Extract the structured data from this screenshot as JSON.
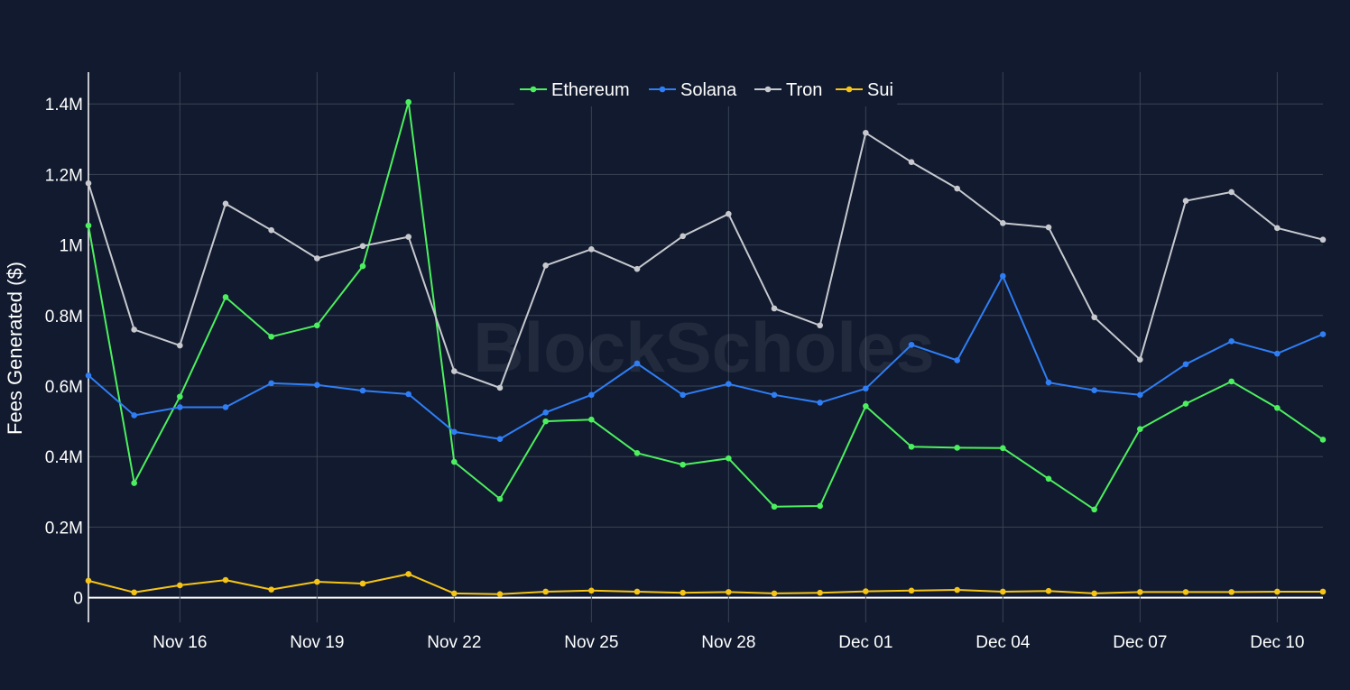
{
  "chart_data": {
    "type": "line",
    "title": "",
    "xlabel": "",
    "ylabel": "Fees Generated ($)",
    "watermark": "BlockScholes",
    "legend_position": "top-center",
    "grid": true,
    "ylim": [
      -70000,
      1490000
    ],
    "y_ticks": [
      0,
      200000,
      400000,
      600000,
      800000,
      1000000,
      1200000,
      1400000
    ],
    "y_tick_labels": [
      "0",
      "0.2M",
      "0.4M",
      "0.6M",
      "0.8M",
      "1M",
      "1.2M",
      "1.4M"
    ],
    "x_start_day": -2,
    "x_end_day": 25,
    "x_ticks": [
      0,
      3,
      6,
      9,
      12,
      15,
      18,
      21,
      24
    ],
    "x_tick_labels": [
      "Nov 16",
      "Nov 19",
      "Nov 22",
      "Nov 25",
      "Nov 28",
      "Dec 01",
      "Dec 04",
      "Dec 07",
      "Dec 10"
    ],
    "x": [
      "Nov 14",
      "Nov 15",
      "Nov 16",
      "Nov 17",
      "Nov 18",
      "Nov 19",
      "Nov 20",
      "Nov 21",
      "Nov 22",
      "Nov 23",
      "Nov 24",
      "Nov 25",
      "Nov 26",
      "Nov 27",
      "Nov 28",
      "Nov 29",
      "Nov 30",
      "Dec 01",
      "Dec 02",
      "Dec 03",
      "Dec 04",
      "Dec 05",
      "Dec 06",
      "Dec 07",
      "Dec 08",
      "Dec 09",
      "Dec 10",
      "Dec 11"
    ],
    "series": [
      {
        "name": "Ethereum",
        "color": "#4cf05f",
        "values": [
          1055000,
          325000,
          570000,
          852000,
          740000,
          772000,
          940000,
          1405000,
          385000,
          280000,
          500000,
          505000,
          410000,
          377000,
          395000,
          258000,
          260000,
          543000,
          428000,
          425000,
          424000,
          337000,
          250000,
          478000,
          550000,
          613000,
          538000,
          448000
        ]
      },
      {
        "name": "Solana",
        "color": "#2f7ef5",
        "values": [
          630000,
          517000,
          540000,
          540000,
          608000,
          603000,
          587000,
          577000,
          470000,
          450000,
          525000,
          575000,
          664000,
          575000,
          606000,
          575000,
          553000,
          593000,
          717000,
          673000,
          912000,
          610000,
          588000,
          575000,
          662000,
          727000,
          692000,
          747000
        ]
      },
      {
        "name": "Tron",
        "color": "#c7c9cf",
        "values": [
          1175000,
          760000,
          715000,
          1117000,
          1042000,
          962000,
          997000,
          1023000,
          642000,
          595000,
          942000,
          988000,
          932000,
          1025000,
          1088000,
          820000,
          772000,
          1318000,
          1235000,
          1160000,
          1062000,
          1050000,
          795000,
          675000,
          1125000,
          1150000,
          1048000,
          1015000
        ]
      },
      {
        "name": "Sui",
        "color": "#f5c417",
        "values": [
          48000,
          15000,
          35000,
          50000,
          23000,
          45000,
          40000,
          67000,
          12000,
          10000,
          17000,
          20000,
          17000,
          14000,
          16000,
          12000,
          14000,
          18000,
          20000,
          22000,
          17000,
          19000,
          12000,
          16000,
          16000,
          16000,
          17000,
          17000
        ]
      }
    ]
  }
}
